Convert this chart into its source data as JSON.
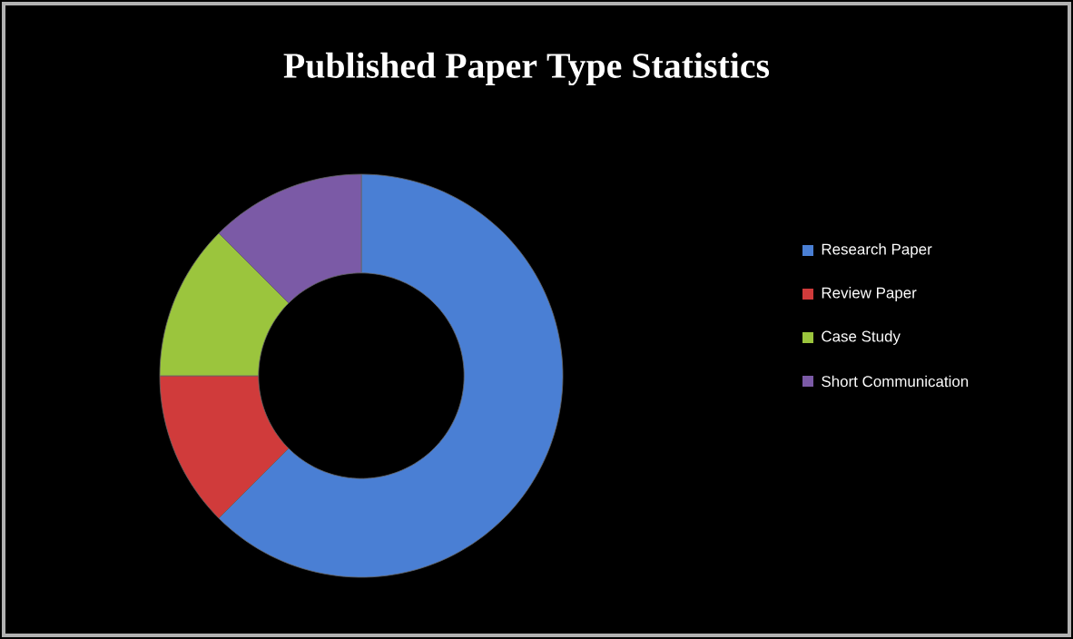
{
  "chart_data": {
    "type": "donut",
    "title": "Published Paper Type Statistics",
    "categories": [
      "Research Paper",
      "Review Paper",
      "Case Study",
      "Short Communication"
    ],
    "values": [
      62.5,
      12.5,
      12.5,
      12.5
    ],
    "colors": [
      "#4a7fd4",
      "#d03b3b",
      "#9bc53d",
      "#7b5aa6"
    ],
    "legend": "right"
  }
}
